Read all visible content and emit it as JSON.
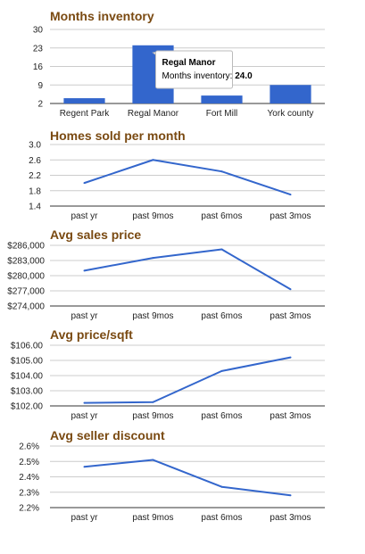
{
  "colors": {
    "title": "#7a4a12",
    "series": "#3366cc",
    "grid": "#cccccc",
    "axis": "#333333"
  },
  "tooltip": {
    "title": "Regal Manor",
    "label": "Months inventory: ",
    "value": "24.0"
  },
  "chart_data": [
    {
      "type": "bar",
      "title": "Months inventory",
      "categories": [
        "Regent Park",
        "Regal Manor",
        "Fort Mill",
        "York county"
      ],
      "values": [
        4,
        24,
        5,
        9
      ],
      "ylim": [
        2,
        30
      ],
      "yticks": [
        "2",
        "9",
        "16",
        "23",
        "30"
      ],
      "grid": true
    },
    {
      "type": "line",
      "title": "Homes sold per month",
      "categories": [
        "past yr",
        "past 9mos",
        "past 6mos",
        "past 3mos"
      ],
      "values": [
        2.0,
        2.6,
        2.3,
        1.7
      ],
      "ylim": [
        1.4,
        3.0
      ],
      "yticks": [
        "1.4",
        "1.8",
        "2.2",
        "2.6",
        "3.0"
      ],
      "grid": true
    },
    {
      "type": "line",
      "title": "Avg sales price",
      "categories": [
        "past yr",
        "past 9mos",
        "past 6mos",
        "past 3mos"
      ],
      "values": [
        281000,
        283500,
        285200,
        277300
      ],
      "ylim": [
        274000,
        286000
      ],
      "yticks": [
        "$274,000",
        "$277,000",
        "$280,000",
        "$283,000",
        "$286,000"
      ],
      "grid": true
    },
    {
      "type": "line",
      "title": "Avg price/sqft",
      "categories": [
        "past yr",
        "past 9mos",
        "past 6mos",
        "past 3mos"
      ],
      "values": [
        102.2,
        102.25,
        104.3,
        105.2
      ],
      "ylim": [
        102.0,
        106.0
      ],
      "yticks": [
        "$102.00",
        "$103.00",
        "$104.00",
        "$105.00",
        "$106.00"
      ],
      "grid": true
    },
    {
      "type": "line",
      "title": "Avg seller discount",
      "categories": [
        "past yr",
        "past 9mos",
        "past 6mos",
        "past 3mos"
      ],
      "values": [
        2.465,
        2.51,
        2.335,
        2.28
      ],
      "ylim": [
        2.2,
        2.6
      ],
      "yticks": [
        "2.2%",
        "2.3%",
        "2.4%",
        "2.5%",
        "2.6%"
      ],
      "grid": true
    }
  ]
}
